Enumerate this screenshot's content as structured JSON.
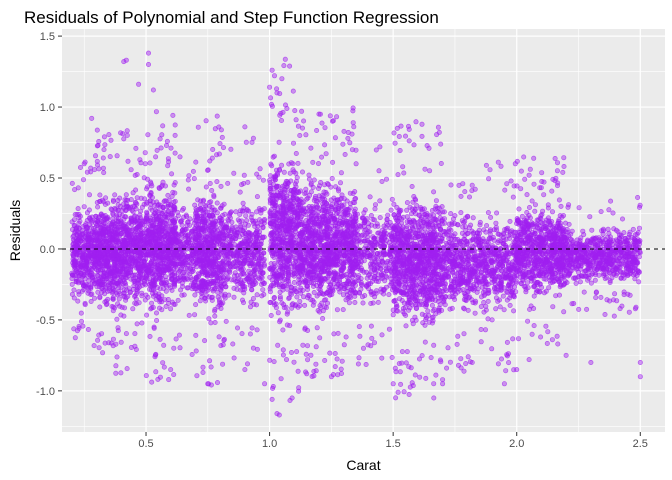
{
  "chart_data": {
    "type": "scatter",
    "title": "Residuals of Polynomial and Step Function Regression",
    "xlabel": "Carat",
    "ylabel": "Residuals",
    "xlim": [
      0.16,
      2.6
    ],
    "ylim": [
      -1.29,
      1.55
    ],
    "xticks": [
      0.5,
      1.0,
      1.5,
      2.0,
      2.5
    ],
    "xtick_labels": [
      "0.5",
      "1.0",
      "1.5",
      "2.0",
      "2.5"
    ],
    "yticks": [
      -1.0,
      -0.5,
      0.0,
      0.5,
      1.0,
      1.5
    ],
    "ytick_labels": [
      "-1.0",
      "-0.5",
      "0.0",
      "0.5",
      "1.0",
      "1.5"
    ],
    "reference_line": {
      "y": 0,
      "style": "dashed",
      "color": "#000000"
    },
    "grid": true,
    "legend": "none",
    "colors": {
      "point": "#a020f0",
      "panel": "#ebebeb",
      "grid": "#ffffff"
    },
    "point_count_note_free": true,
    "clusters": [
      {
        "x_range": [
          0.2,
          0.3
        ],
        "y_low": -0.45,
        "y_high": 0.38,
        "density": 0.7
      },
      {
        "x_range": [
          0.3,
          0.42
        ],
        "y_low": -0.55,
        "y_high": 0.48,
        "density": 1.0
      },
      {
        "x_range": [
          0.42,
          0.5
        ],
        "y_low": -0.5,
        "y_high": 0.5,
        "density": 0.8
      },
      {
        "x_range": [
          0.5,
          0.62
        ],
        "y_low": -0.55,
        "y_high": 0.58,
        "density": 1.0
      },
      {
        "x_range": [
          0.62,
          0.7
        ],
        "y_low": -0.45,
        "y_high": 0.4,
        "density": 0.5
      },
      {
        "x_range": [
          0.7,
          0.82
        ],
        "y_low": -0.6,
        "y_high": 0.55,
        "density": 0.9
      },
      {
        "x_range": [
          0.82,
          0.98
        ],
        "y_low": -0.5,
        "y_high": 0.45,
        "density": 0.5
      },
      {
        "x_range": [
          1.0,
          1.12
        ],
        "y_low": -0.65,
        "y_high": 0.85,
        "density": 1.0
      },
      {
        "x_range": [
          1.12,
          1.35
        ],
        "y_low": -0.55,
        "y_high": 0.6,
        "density": 0.9
      },
      {
        "x_range": [
          1.35,
          1.5
        ],
        "y_low": -0.5,
        "y_high": 0.45,
        "density": 0.4
      },
      {
        "x_range": [
          1.5,
          1.7
        ],
        "y_low": -0.65,
        "y_high": 0.5,
        "density": 0.9
      },
      {
        "x_range": [
          1.7,
          2.0
        ],
        "y_low": -0.55,
        "y_high": 0.35,
        "density": 0.5
      },
      {
        "x_range": [
          2.0,
          2.2
        ],
        "y_low": -0.4,
        "y_high": 0.38,
        "density": 0.7
      },
      {
        "x_range": [
          2.2,
          2.5
        ],
        "y_low": -0.3,
        "y_high": 0.2,
        "density": 0.4
      }
    ],
    "outliers": [
      {
        "x": 0.41,
        "y": 1.32
      },
      {
        "x": 0.42,
        "y": 1.33
      },
      {
        "x": 0.51,
        "y": 1.38
      },
      {
        "x": 0.51,
        "y": 1.3
      },
      {
        "x": 0.47,
        "y": 1.16
      },
      {
        "x": 0.53,
        "y": 1.12
      },
      {
        "x": 1.01,
        "y": 1.26
      },
      {
        "x": 1.02,
        "y": 1.22
      },
      {
        "x": 1.05,
        "y": 1.2
      },
      {
        "x": 1.03,
        "y": 1.1
      },
      {
        "x": 0.9,
        "y": 0.86
      },
      {
        "x": 1.2,
        "y": 0.95
      },
      {
        "x": 1.01,
        "y": -1.06
      },
      {
        "x": 1.03,
        "y": -1.16
      },
      {
        "x": 0.98,
        "y": -0.95
      },
      {
        "x": 1.51,
        "y": -1.05
      },
      {
        "x": 1.52,
        "y": -1.01
      },
      {
        "x": 1.5,
        "y": -0.95
      },
      {
        "x": 1.25,
        "y": -0.9
      },
      {
        "x": 1.15,
        "y": -0.88
      },
      {
        "x": 0.75,
        "y": -0.95
      },
      {
        "x": 0.6,
        "y": -0.85
      },
      {
        "x": 1.7,
        "y": -0.95
      },
      {
        "x": 1.95,
        "y": -0.95
      },
      {
        "x": 2.05,
        "y": 0.52
      },
      {
        "x": 2.2,
        "y": -0.75
      },
      {
        "x": 2.5,
        "y": -0.8
      },
      {
        "x": 2.5,
        "y": -0.9
      },
      {
        "x": 2.3,
        "y": -0.8
      },
      {
        "x": 2.0,
        "y": -0.85
      },
      {
        "x": 2.05,
        "y": -0.78
      },
      {
        "x": 2.48,
        "y": 0.1
      },
      {
        "x": 2.45,
        "y": 0.04
      },
      {
        "x": 1.82,
        "y": -0.8
      },
      {
        "x": 1.35,
        "y": 0.6
      },
      {
        "x": 0.28,
        "y": 0.92
      },
      {
        "x": 0.33,
        "y": 0.7
      },
      {
        "x": 0.25,
        "y": 0.6
      },
      {
        "x": 0.9,
        "y": -0.85
      },
      {
        "x": 1.38,
        "y": -0.7
      }
    ]
  }
}
